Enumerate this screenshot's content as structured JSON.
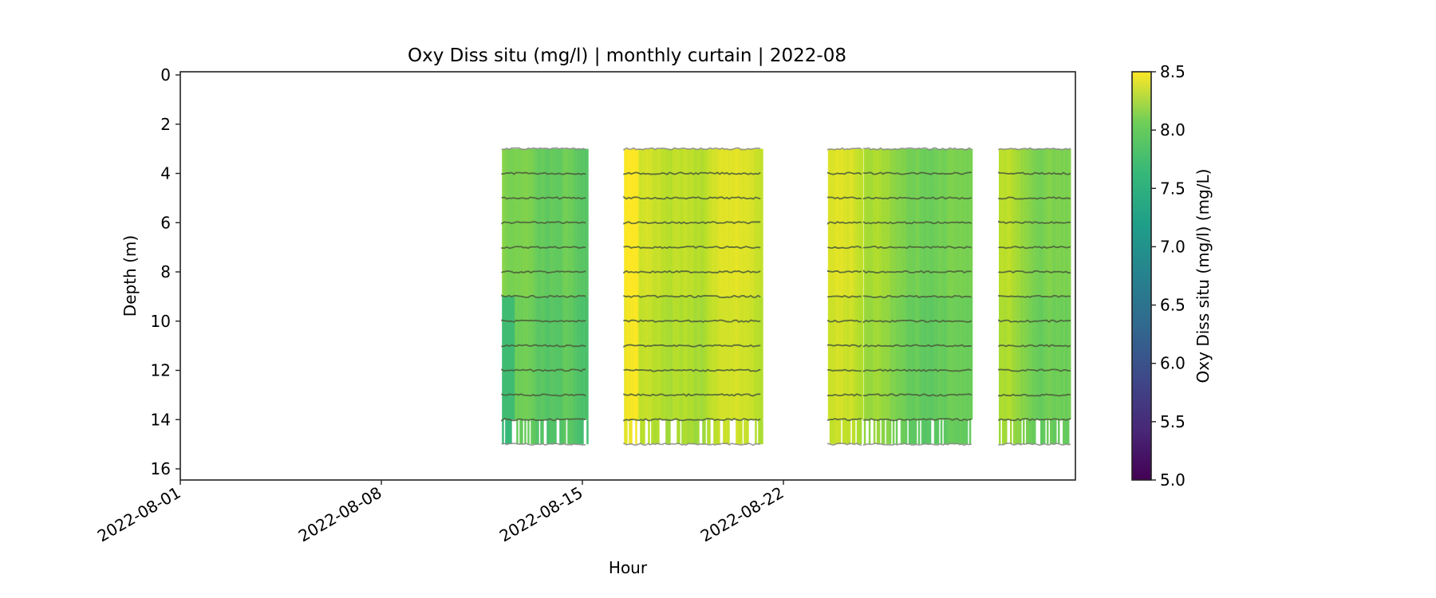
{
  "chart_data": {
    "type": "heatmap",
    "title": "Oxy Diss situ (mg/l) | monthly curtain | 2022-08",
    "xlabel": "Hour",
    "ylabel": "Depth (m)",
    "x_range": [
      "2022-08-01",
      "2022-09-01"
    ],
    "ylim": [
      16.3,
      -0.2
    ],
    "y_inverted": true,
    "yticks": [
      0,
      2,
      4,
      6,
      8,
      10,
      12,
      14,
      16
    ],
    "xticks": [
      {
        "date": "2022-08-01",
        "label": "2022-08-01"
      },
      {
        "date": "2022-08-08",
        "label": "2022-08-08"
      },
      {
        "date": "2022-08-15",
        "label": "2022-08-15"
      },
      {
        "date": "2022-08-22",
        "label": "2022-08-22"
      }
    ],
    "grid": false,
    "colorbar": {
      "label": "Oxy Diss situ (mg/l) (mg/L)",
      "colormap": "viridis",
      "range": [
        5.0,
        8.5
      ],
      "ticks": [
        "5.0",
        "5.5",
        "6.0",
        "6.5",
        "7.0",
        "7.5",
        "8.0",
        "8.5"
      ],
      "placement": "right"
    },
    "sensor_depths_m": [
      3,
      4,
      5,
      6,
      7,
      8,
      9,
      10,
      11,
      12,
      13,
      14,
      15
    ],
    "data_segments": [
      {
        "start_day": 11.2,
        "end_day": 14.15,
        "top_depth": 3,
        "bottom_depth": 15,
        "typical_value_range": [
          7.3,
          8.3
        ],
        "note": "greener (~7.4) near left edge at depth 9-15 m"
      },
      {
        "start_day": 15.45,
        "end_day": 20.25,
        "top_depth": 3,
        "bottom_depth": 15,
        "typical_value_range": [
          7.7,
          8.5
        ],
        "note": "yellow (~8.4) near left edge"
      },
      {
        "start_day": 22.55,
        "end_day": 23.75,
        "top_depth": 3,
        "bottom_depth": 15,
        "typical_value_range": [
          7.9,
          8.5
        ]
      },
      {
        "start_day": 23.8,
        "end_day": 27.55,
        "top_depth": 3,
        "bottom_depth": 15,
        "typical_value_range": [
          7.6,
          8.4
        ]
      },
      {
        "start_day": 28.5,
        "end_day": 31.0,
        "top_depth": 3,
        "bottom_depth": 15,
        "typical_value_range": [
          7.6,
          8.4
        ]
      }
    ],
    "bottom_gap_note": "Data between 14 and 15 m is intermittent (white gaps)."
  }
}
